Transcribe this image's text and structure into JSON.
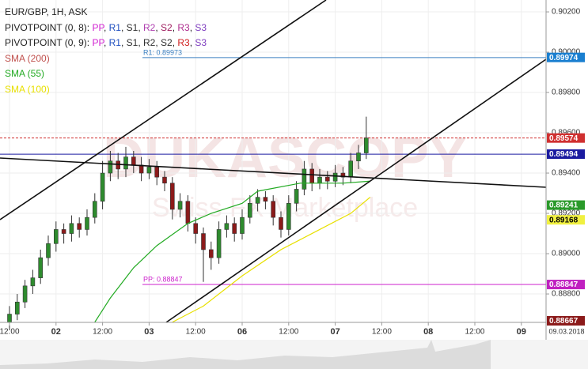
{
  "chart_data": {
    "type": "candlestick",
    "title": "EUR/GBP, 1H, ASK",
    "separator": ", ",
    "indicators": [
      {
        "label": "PIVOTPOINT (0, 8):",
        "parts": [
          {
            "text": "PP",
            "color": "#d020d0"
          },
          {
            "text": "R1",
            "color": "#2050c0"
          },
          {
            "text": "S1",
            "color": "#303030"
          },
          {
            "text": "R2",
            "color": "#b040b0"
          },
          {
            "text": "S2",
            "color": "#a02060"
          },
          {
            "text": "R3",
            "color": "#b03090"
          },
          {
            "text": "S3",
            "color": "#8040c0"
          }
        ]
      },
      {
        "label": "PIVOTPOINT (0, 9):",
        "parts": [
          {
            "text": "PP",
            "color": "#d020d0"
          },
          {
            "text": "R1",
            "color": "#2050c0"
          },
          {
            "text": "S1",
            "color": "#303030"
          },
          {
            "text": "R2",
            "color": "#303030"
          },
          {
            "text": "S2",
            "color": "#303030"
          },
          {
            "text": "R3",
            "color": "#d02020"
          },
          {
            "text": "S3",
            "color": "#8040c0"
          }
        ]
      }
    ],
    "series": [
      {
        "name": "SMA (200)",
        "color": "#c0504d"
      },
      {
        "name": "SMA (55)",
        "color": "#22aa22",
        "x": [
          22,
          26,
          32,
          38,
          46,
          52,
          60,
          64,
          75,
          86,
          93
        ],
        "values": [
          0.8866,
          0.8878,
          0.8893,
          0.8904,
          0.8915,
          0.892,
          0.8925,
          0.8931,
          0.8935,
          0.8935,
          0.8936
        ]
      },
      {
        "name": "SMA (100)",
        "color": "#e8e000",
        "x": [
          42,
          50,
          60,
          70,
          80,
          88,
          93
        ],
        "values": [
          0.8866,
          0.8874,
          0.8889,
          0.8902,
          0.8912,
          0.892,
          0.8928
        ]
      }
    ],
    "candles": {
      "up_color": "#2e8b2e",
      "down_color": "#8b1a1a",
      "x": [
        0,
        2,
        4,
        6,
        8,
        10,
        12,
        14,
        16,
        18,
        20,
        22,
        24,
        26,
        28,
        30,
        32,
        34,
        36,
        38,
        40,
        42,
        44,
        46,
        48,
        50,
        52,
        54,
        56,
        58,
        60,
        62,
        64,
        66,
        68,
        70,
        72,
        74,
        76,
        78,
        80,
        82,
        84,
        86,
        88,
        90,
        92
      ],
      "open": [
        0.8866,
        0.887,
        0.8876,
        0.8884,
        0.8888,
        0.8898,
        0.8905,
        0.8912,
        0.891,
        0.8915,
        0.8912,
        0.8918,
        0.8926,
        0.894,
        0.8946,
        0.8942,
        0.8948,
        0.8944,
        0.894,
        0.8943,
        0.8938,
        0.8935,
        0.8922,
        0.8926,
        0.8915,
        0.891,
        0.8902,
        0.8898,
        0.8912,
        0.8915,
        0.891,
        0.8918,
        0.8925,
        0.8928,
        0.8926,
        0.8918,
        0.8912,
        0.8925,
        0.8932,
        0.8942,
        0.8935,
        0.8938,
        0.8936,
        0.894,
        0.8938,
        0.8946,
        0.895
      ],
      "high": [
        0.8874,
        0.888,
        0.8887,
        0.8892,
        0.8902,
        0.8909,
        0.8916,
        0.8915,
        0.8919,
        0.8918,
        0.8922,
        0.893,
        0.8946,
        0.8951,
        0.895,
        0.8953,
        0.8951,
        0.8948,
        0.8947,
        0.8946,
        0.8941,
        0.8938,
        0.893,
        0.8929,
        0.8918,
        0.8913,
        0.8906,
        0.8916,
        0.8919,
        0.8918,
        0.8922,
        0.8929,
        0.8932,
        0.8931,
        0.8929,
        0.8921,
        0.8929,
        0.8936,
        0.8946,
        0.8945,
        0.8942,
        0.8941,
        0.8944,
        0.8943,
        0.895,
        0.8954,
        0.8968
      ],
      "low": [
        0.8862,
        0.8867,
        0.8873,
        0.888,
        0.8885,
        0.8894,
        0.8901,
        0.8905,
        0.8906,
        0.8908,
        0.8909,
        0.8915,
        0.8922,
        0.8936,
        0.8937,
        0.8938,
        0.894,
        0.8936,
        0.8937,
        0.8934,
        0.8931,
        0.8917,
        0.8918,
        0.8911,
        0.8905,
        0.8886,
        0.8892,
        0.8895,
        0.8908,
        0.8906,
        0.8907,
        0.8915,
        0.8921,
        0.8922,
        0.8914,
        0.8908,
        0.8909,
        0.8921,
        0.8929,
        0.8931,
        0.8932,
        0.8932,
        0.8933,
        0.8934,
        0.8935,
        0.8942,
        0.8947
      ],
      "close": [
        0.887,
        0.8876,
        0.8884,
        0.8888,
        0.8898,
        0.8905,
        0.8912,
        0.891,
        0.8915,
        0.8912,
        0.8918,
        0.8926,
        0.894,
        0.8946,
        0.8942,
        0.8948,
        0.8944,
        0.894,
        0.8943,
        0.8938,
        0.8935,
        0.8922,
        0.8926,
        0.8915,
        0.891,
        0.8902,
        0.8898,
        0.8912,
        0.8915,
        0.891,
        0.8918,
        0.8925,
        0.8928,
        0.8926,
        0.8918,
        0.8912,
        0.8925,
        0.8932,
        0.8942,
        0.8935,
        0.8938,
        0.8936,
        0.894,
        0.8938,
        0.8946,
        0.895,
        0.89574
      ]
    },
    "levels": [
      {
        "label": "R1: 0.89973",
        "value": 0.89973,
        "color": "#3a7fc0"
      },
      {
        "label": "PP: 0.88847",
        "value": 0.88847,
        "color": "#cc22cc"
      }
    ],
    "hlines": [
      {
        "value": 0.89574,
        "color": "#d03030",
        "dashed": true
      },
      {
        "value": 0.89494,
        "color": "#1a1aa0",
        "dashed": false
      }
    ],
    "price_tags": [
      {
        "value": 0.89974,
        "color": "#1a7fd0",
        "text_color": "#ffffff"
      },
      {
        "value": 0.89574,
        "color": "#d03030",
        "text_color": "#ffffff"
      },
      {
        "value": 0.89494,
        "color": "#1a1aa0",
        "text_color": "#ffffff"
      },
      {
        "value": 0.89241,
        "color": "#2a9a2a",
        "text_color": "#ffffff"
      },
      {
        "value": 0.89168,
        "color": "#f0f040",
        "text_color": "#000000"
      },
      {
        "value": 0.88847,
        "color": "#c020c0",
        "text_color": "#ffffff"
      },
      {
        "value": 0.88667,
        "color": "#8b1a1a",
        "text_color": "#ffffff"
      }
    ],
    "ylim": [
      0.88659,
      0.90259
    ],
    "yticks": [
      {
        "value": 0.902,
        "label": "0.90200"
      },
      {
        "value": 0.9,
        "label": "0.90000"
      },
      {
        "value": 0.898,
        "label": "0.89800"
      },
      {
        "value": 0.896,
        "label": "0.89600"
      },
      {
        "value": 0.894,
        "label": "0.89400"
      },
      {
        "value": 0.892,
        "label": "0.89200"
      },
      {
        "value": 0.89,
        "label": "0.89000"
      },
      {
        "value": 0.888,
        "label": "0.88800"
      }
    ],
    "xlim": [
      -2.45,
      138.37
    ],
    "xticks": [
      {
        "value": 0,
        "label": "12:00"
      },
      {
        "value": 12,
        "label": "02"
      },
      {
        "value": 24,
        "label": "12:00"
      },
      {
        "value": 36,
        "label": "03"
      },
      {
        "value": 48,
        "label": "12:00"
      },
      {
        "value": 60,
        "label": "06"
      },
      {
        "value": 72,
        "label": "12:00"
      },
      {
        "value": 84,
        "label": "07"
      },
      {
        "value": 96,
        "label": "12:00"
      },
      {
        "value": 108,
        "label": "08"
      },
      {
        "value": 120,
        "label": "12:00"
      },
      {
        "value": 132,
        "label": "09"
      }
    ],
    "date_label": "09.03.2018",
    "watermark": "DUKASCOPY",
    "watermark_sub": "Swiss FX Marketplace",
    "grid": true
  }
}
